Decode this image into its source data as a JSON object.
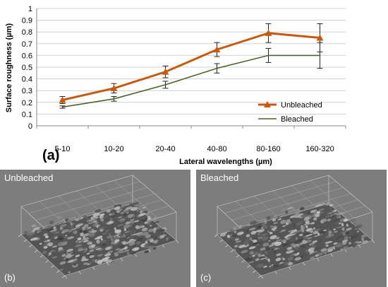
{
  "chart_data": {
    "type": "line",
    "categories": [
      "5-10",
      "10-20",
      "20-40",
      "40-80",
      "80-160",
      "160-320"
    ],
    "xlabel": "Lateral wavelengths (µm)",
    "ylabel": "Surface roughness (µm)",
    "ylim": [
      0,
      1
    ],
    "yticks": [
      "0",
      "0.1",
      "0.2",
      "0.3",
      "0.4",
      "0.5",
      "0.6",
      "0.7",
      "0.8",
      "0.9",
      "1"
    ],
    "grid": true,
    "legend_position": "right",
    "series": [
      {
        "name": "Unbleached",
        "color": "#c55a11",
        "marker": "triangle",
        "values": [
          0.22,
          0.32,
          0.46,
          0.65,
          0.79,
          0.75
        ],
        "errors": [
          0.03,
          0.04,
          0.05,
          0.06,
          0.08,
          0.12
        ]
      },
      {
        "name": "Bleached",
        "color": "#4f6228",
        "marker": "none",
        "values": [
          0.16,
          0.23,
          0.35,
          0.49,
          0.6,
          0.6
        ],
        "errors": [
          0.01,
          0.02,
          0.03,
          0.04,
          0.06,
          0.11
        ]
      }
    ],
    "panel_label": "(a)"
  },
  "panels": [
    {
      "title": "Unbleached",
      "label": "(b)"
    },
    {
      "title": "Bleached",
      "label": "(c)"
    }
  ]
}
